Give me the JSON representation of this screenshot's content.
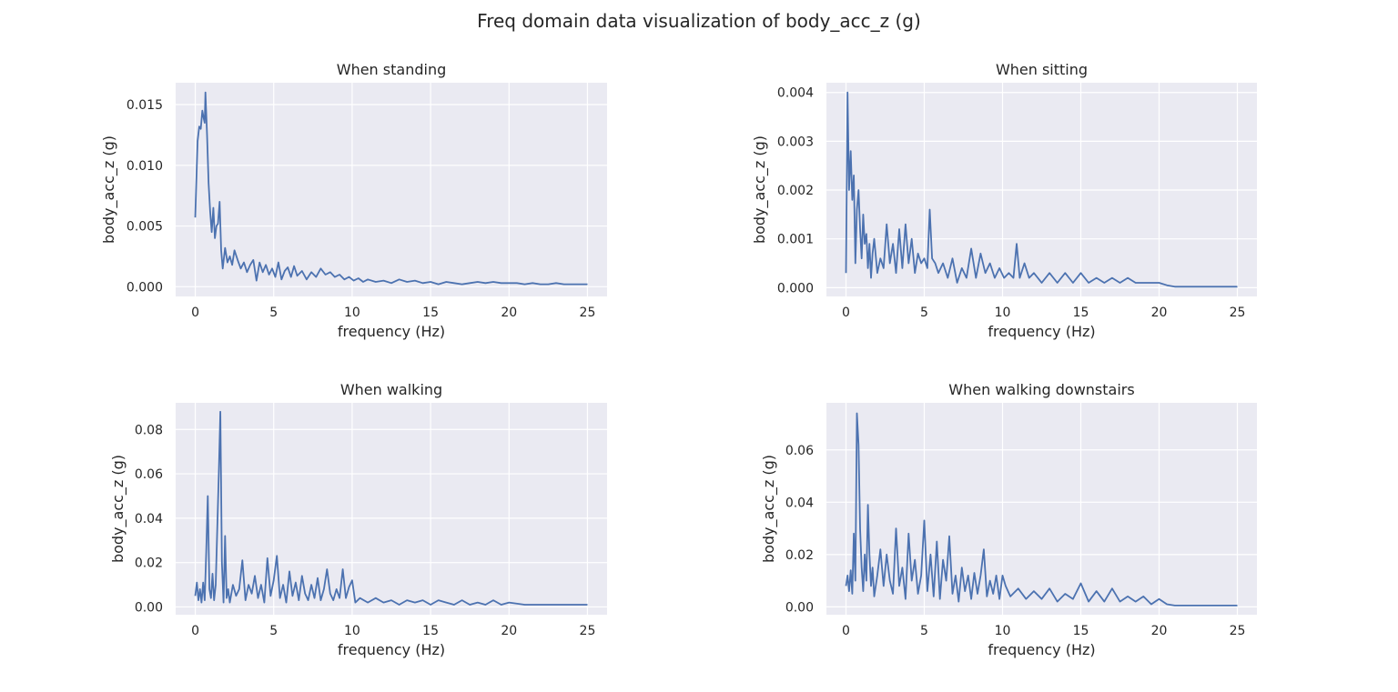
{
  "figure": {
    "title": "Freq domain data visualization of body_acc_z (g)",
    "line_color": "#4c72b0",
    "background_color": "#eaeaf2",
    "grid": true
  },
  "chart_data": [
    {
      "type": "line",
      "title": "When standing",
      "xlabel": "frequency (Hz)",
      "ylabel": "body_acc_z (g)",
      "xlim": [
        -1.25,
        26.25
      ],
      "ylim": [
        -0.0008,
        0.0168
      ],
      "xticks": [
        0,
        5,
        10,
        15,
        20,
        25
      ],
      "yticks": [
        0.0,
        0.005,
        0.01,
        0.015
      ],
      "ytick_labels": [
        "0.000",
        "0.005",
        "0.010",
        "0.015"
      ],
      "x": [
        0,
        0.15,
        0.25,
        0.35,
        0.45,
        0.55,
        0.6,
        0.65,
        0.75,
        0.85,
        0.95,
        1.05,
        1.15,
        1.25,
        1.35,
        1.45,
        1.55,
        1.65,
        1.75,
        1.9,
        2.05,
        2.2,
        2.35,
        2.5,
        2.7,
        2.9,
        3.1,
        3.3,
        3.5,
        3.7,
        3.9,
        4.1,
        4.3,
        4.5,
        4.7,
        4.9,
        5.1,
        5.3,
        5.5,
        5.7,
        5.9,
        6.1,
        6.3,
        6.5,
        6.8,
        7.1,
        7.4,
        7.7,
        8.0,
        8.3,
        8.6,
        8.9,
        9.2,
        9.5,
        9.8,
        10.1,
        10.4,
        10.7,
        11.0,
        11.5,
        12.0,
        12.5,
        13.0,
        13.5,
        14.0,
        14.5,
        15.0,
        15.5,
        16.0,
        16.5,
        17.0,
        17.5,
        18.0,
        18.5,
        19.0,
        19.5,
        20.0,
        20.5,
        21.0,
        21.5,
        22.0,
        22.5,
        23.0,
        23.5,
        24.0,
        24.5,
        25.0
      ],
      "y": [
        0.0057,
        0.012,
        0.0132,
        0.013,
        0.0145,
        0.0138,
        0.0135,
        0.016,
        0.0125,
        0.0085,
        0.0062,
        0.0045,
        0.0065,
        0.004,
        0.005,
        0.0052,
        0.007,
        0.003,
        0.0015,
        0.0032,
        0.002,
        0.0025,
        0.0018,
        0.003,
        0.0022,
        0.0015,
        0.002,
        0.0012,
        0.0018,
        0.0022,
        0.0005,
        0.002,
        0.0012,
        0.0018,
        0.001,
        0.0015,
        0.0008,
        0.002,
        0.0006,
        0.0013,
        0.0016,
        0.0008,
        0.0017,
        0.0009,
        0.0013,
        0.0006,
        0.0012,
        0.0008,
        0.0015,
        0.001,
        0.0012,
        0.0008,
        0.001,
        0.0006,
        0.0008,
        0.0005,
        0.0007,
        0.0004,
        0.0006,
        0.0004,
        0.0005,
        0.0003,
        0.0006,
        0.0004,
        0.0005,
        0.0003,
        0.0004,
        0.0002,
        0.0004,
        0.0003,
        0.0002,
        0.0003,
        0.0004,
        0.0003,
        0.0004,
        0.0003,
        0.0003,
        0.0003,
        0.0002,
        0.0003,
        0.0002,
        0.0002,
        0.0003,
        0.0002,
        0.0002,
        0.0002,
        0.0002
      ]
    },
    {
      "type": "line",
      "title": "When sitting",
      "xlabel": "frequency (Hz)",
      "ylabel": "body_acc_z (g)",
      "xlim": [
        -1.25,
        26.25
      ],
      "ylim": [
        -0.00018,
        0.0042
      ],
      "xticks": [
        0,
        5,
        10,
        15,
        20,
        25
      ],
      "yticks": [
        0.0,
        0.001,
        0.002,
        0.003,
        0.004
      ],
      "ytick_labels": [
        "0.000",
        "0.001",
        "0.002",
        "0.003",
        "0.004"
      ],
      "x": [
        0,
        0.1,
        0.2,
        0.3,
        0.4,
        0.5,
        0.6,
        0.7,
        0.8,
        0.9,
        1.0,
        1.1,
        1.2,
        1.3,
        1.4,
        1.5,
        1.6,
        1.7,
        1.8,
        2.0,
        2.2,
        2.4,
        2.6,
        2.8,
        3.0,
        3.2,
        3.4,
        3.6,
        3.8,
        4.0,
        4.2,
        4.4,
        4.6,
        4.8,
        5.0,
        5.2,
        5.35,
        5.5,
        5.7,
        5.9,
        6.2,
        6.5,
        6.8,
        7.1,
        7.4,
        7.7,
        8.0,
        8.3,
        8.6,
        8.9,
        9.2,
        9.5,
        9.8,
        10.1,
        10.4,
        10.7,
        10.9,
        11.1,
        11.4,
        11.7,
        12.0,
        12.5,
        13.0,
        13.5,
        14.0,
        14.5,
        15.0,
        15.5,
        16.0,
        16.5,
        17.0,
        17.5,
        18.0,
        18.5,
        19.0,
        19.5,
        20.0,
        20.5,
        21.0,
        22.0,
        23.0,
        24.0,
        25.0
      ],
      "y": [
        0.0003,
        0.004,
        0.002,
        0.0028,
        0.0018,
        0.0023,
        0.0005,
        0.0016,
        0.002,
        0.0012,
        0.0006,
        0.0015,
        0.0009,
        0.0011,
        0.0004,
        0.0009,
        0.0002,
        0.0007,
        0.001,
        0.0003,
        0.0006,
        0.0004,
        0.0013,
        0.0005,
        0.0009,
        0.0003,
        0.0012,
        0.0004,
        0.0013,
        0.0005,
        0.001,
        0.0003,
        0.0007,
        0.0005,
        0.0006,
        0.0004,
        0.0016,
        0.0006,
        0.0005,
        0.0003,
        0.0005,
        0.0002,
        0.0006,
        0.0001,
        0.0004,
        0.0002,
        0.0008,
        0.0002,
        0.0007,
        0.0003,
        0.0005,
        0.0002,
        0.0004,
        0.0002,
        0.0003,
        0.0002,
        0.0009,
        0.0002,
        0.0005,
        0.0002,
        0.0003,
        0.0001,
        0.0003,
        0.0001,
        0.0003,
        0.0001,
        0.0003,
        0.0001,
        0.0002,
        0.0001,
        0.0002,
        0.0001,
        0.0002,
        0.0001,
        0.0001,
        0.0001,
        0.0001,
        5e-05,
        2e-05,
        2e-05,
        2e-05,
        2e-05,
        2e-05
      ]
    },
    {
      "type": "line",
      "title": "When walking",
      "xlabel": "frequency (Hz)",
      "ylabel": "body_acc_z (g)",
      "xlim": [
        -1.25,
        26.25
      ],
      "ylim": [
        -0.0035,
        0.092
      ],
      "xticks": [
        0,
        5,
        10,
        15,
        20,
        25
      ],
      "yticks": [
        0.0,
        0.02,
        0.04,
        0.06,
        0.08
      ],
      "ytick_labels": [
        "0.00",
        "0.02",
        "0.04",
        "0.06",
        "0.08"
      ],
      "x": [
        0,
        0.1,
        0.2,
        0.3,
        0.4,
        0.5,
        0.6,
        0.7,
        0.8,
        0.9,
        1.0,
        1.1,
        1.2,
        1.3,
        1.4,
        1.5,
        1.6,
        1.7,
        1.8,
        1.9,
        2.0,
        2.1,
        2.2,
        2.4,
        2.6,
        2.8,
        3.0,
        3.2,
        3.4,
        3.6,
        3.8,
        4.0,
        4.2,
        4.4,
        4.6,
        4.8,
        5.0,
        5.2,
        5.4,
        5.6,
        5.8,
        6.0,
        6.2,
        6.4,
        6.6,
        6.8,
        7.0,
        7.2,
        7.4,
        7.6,
        7.8,
        8.0,
        8.2,
        8.4,
        8.6,
        8.8,
        9.0,
        9.2,
        9.4,
        9.6,
        9.8,
        10.0,
        10.2,
        10.5,
        11.0,
        11.5,
        12.0,
        12.5,
        13.0,
        13.5,
        14.0,
        14.5,
        15.0,
        15.5,
        16.0,
        16.5,
        17.0,
        17.5,
        18.0,
        18.5,
        19.0,
        19.5,
        20.0,
        21.0,
        22.0,
        23.0,
        24.0,
        25.0
      ],
      "y": [
        0.005,
        0.011,
        0.003,
        0.008,
        0.002,
        0.011,
        0.003,
        0.025,
        0.05,
        0.008,
        0.004,
        0.015,
        0.003,
        0.01,
        0.035,
        0.06,
        0.088,
        0.02,
        0.002,
        0.032,
        0.004,
        0.008,
        0.002,
        0.01,
        0.005,
        0.008,
        0.021,
        0.003,
        0.01,
        0.006,
        0.014,
        0.004,
        0.01,
        0.002,
        0.022,
        0.005,
        0.012,
        0.023,
        0.004,
        0.01,
        0.002,
        0.016,
        0.005,
        0.011,
        0.003,
        0.014,
        0.006,
        0.003,
        0.01,
        0.004,
        0.013,
        0.003,
        0.008,
        0.017,
        0.006,
        0.003,
        0.008,
        0.004,
        0.017,
        0.004,
        0.009,
        0.012,
        0.002,
        0.004,
        0.002,
        0.004,
        0.002,
        0.003,
        0.001,
        0.003,
        0.002,
        0.003,
        0.001,
        0.003,
        0.002,
        0.001,
        0.003,
        0.001,
        0.002,
        0.001,
        0.003,
        0.001,
        0.002,
        0.001,
        0.001,
        0.001,
        0.001,
        0.001
      ]
    },
    {
      "type": "line",
      "title": "When walking downstairs",
      "xlabel": "frequency (Hz)",
      "ylabel": "body_acc_z (g)",
      "xlim": [
        -1.25,
        26.25
      ],
      "ylim": [
        -0.003,
        0.078
      ],
      "xticks": [
        0,
        5,
        10,
        15,
        20,
        25
      ],
      "yticks": [
        0.0,
        0.02,
        0.04,
        0.06
      ],
      "ytick_labels": [
        "0.00",
        "0.02",
        "0.04",
        "0.06"
      ],
      "x": [
        0,
        0.1,
        0.2,
        0.3,
        0.4,
        0.5,
        0.6,
        0.7,
        0.8,
        0.9,
        1.0,
        1.1,
        1.2,
        1.3,
        1.4,
        1.5,
        1.6,
        1.7,
        1.8,
        2.0,
        2.2,
        2.4,
        2.6,
        2.8,
        3.0,
        3.2,
        3.4,
        3.6,
        3.8,
        4.0,
        4.2,
        4.4,
        4.6,
        4.8,
        5.0,
        5.2,
        5.4,
        5.6,
        5.8,
        6.0,
        6.2,
        6.4,
        6.6,
        6.8,
        7.0,
        7.2,
        7.4,
        7.6,
        7.8,
        8.0,
        8.2,
        8.4,
        8.6,
        8.8,
        9.0,
        9.2,
        9.4,
        9.6,
        9.8,
        10.0,
        10.2,
        10.5,
        11.0,
        11.5,
        12.0,
        12.5,
        13.0,
        13.5,
        14.0,
        14.5,
        15.0,
        15.5,
        16.0,
        16.5,
        17.0,
        17.5,
        18.0,
        18.5,
        19.0,
        19.5,
        20.0,
        20.5,
        21.0,
        22.0,
        23.0,
        24.0,
        25.0
      ],
      "y": [
        0.008,
        0.012,
        0.006,
        0.014,
        0.005,
        0.028,
        0.01,
        0.074,
        0.062,
        0.03,
        0.015,
        0.006,
        0.02,
        0.01,
        0.039,
        0.02,
        0.008,
        0.015,
        0.004,
        0.012,
        0.022,
        0.008,
        0.02,
        0.01,
        0.005,
        0.03,
        0.008,
        0.015,
        0.003,
        0.028,
        0.01,
        0.018,
        0.005,
        0.012,
        0.033,
        0.006,
        0.02,
        0.004,
        0.025,
        0.003,
        0.018,
        0.01,
        0.027,
        0.005,
        0.012,
        0.002,
        0.015,
        0.006,
        0.012,
        0.003,
        0.013,
        0.005,
        0.012,
        0.022,
        0.004,
        0.01,
        0.005,
        0.012,
        0.003,
        0.012,
        0.008,
        0.004,
        0.007,
        0.003,
        0.006,
        0.003,
        0.007,
        0.002,
        0.005,
        0.003,
        0.009,
        0.002,
        0.006,
        0.002,
        0.007,
        0.002,
        0.004,
        0.002,
        0.004,
        0.001,
        0.003,
        0.001,
        0.0005,
        0.0005,
        0.0005,
        0.0005,
        0.0005
      ]
    }
  ]
}
